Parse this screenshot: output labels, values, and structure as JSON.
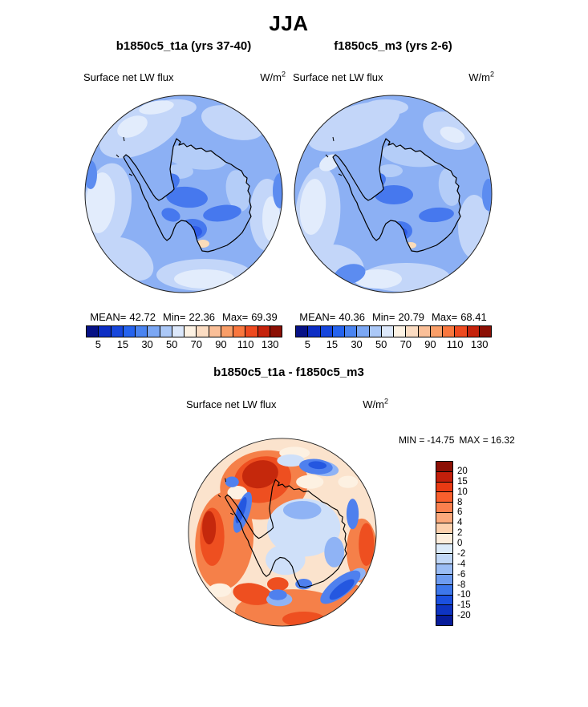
{
  "page": {
    "title": "JJA"
  },
  "labels": {
    "mean": "MEAN=",
    "min": "Min=",
    "max": "Max=",
    "diff_min": "MIN =",
    "diff_max": "MAX ="
  },
  "panels": {
    "left": {
      "header": "b1850c5_t1a (yrs 37-40)",
      "variable": "Surface net LW flux",
      "units_base": "W/m",
      "units_exp": "2",
      "mean": "42.72",
      "min": "22.36",
      "max": "69.39"
    },
    "right": {
      "header": "f1850c5_m3 (yrs 2-6)",
      "variable": "Surface net LW flux",
      "units_base": "W/m",
      "units_exp": "2",
      "mean": "40.36",
      "min": "20.79",
      "max": "68.41"
    }
  },
  "top_colorbar": {
    "tick_labels": [
      "5",
      "15",
      "30",
      "50",
      "70",
      "90",
      "110",
      "130"
    ],
    "colors": [
      "#071286",
      "#0d2ec4",
      "#1646dc",
      "#2563ee",
      "#4a84f1",
      "#7ba7f4",
      "#abc8f7",
      "#dce8fb",
      "#fdf2e3",
      "#fbdcc2",
      "#fabf98",
      "#f99e68",
      "#f9773e",
      "#ee4a1f",
      "#c5230c",
      "#8c1005"
    ]
  },
  "diff": {
    "header": "b1850c5_t1a - f1850c5_m3",
    "variable": "Surface net LW flux",
    "units_base": "W/m",
    "units_exp": "2",
    "min": "-14.75",
    "max": "16.32",
    "colorbar": {
      "tick_labels": [
        "20",
        "15",
        "10",
        "8",
        "6",
        "4",
        "2",
        "0",
        "-2",
        "-4",
        "-6",
        "-8",
        "-10",
        "-15",
        "-20"
      ],
      "colors": [
        "#8c1005",
        "#c31f0b",
        "#e93a13",
        "#f95f2d",
        "#fa804e",
        "#fba97c",
        "#fcd0ad",
        "#fdeedd",
        "#dcebfa",
        "#c1d8f8",
        "#9bbdf5",
        "#6e9cf1",
        "#3d77ec",
        "#1b50e0",
        "#0e34c2",
        "#071c9a"
      ]
    }
  },
  "chart_data": [
    {
      "type": "heatmap",
      "subtype": "south-polar-stereographic-map",
      "title": "b1850c5_t1a (yrs 37-40)",
      "season": "JJA",
      "variable": "Surface net LW flux",
      "units": "W/m^2",
      "stats": {
        "mean": 42.72,
        "min": 22.36,
        "max": 69.39
      },
      "contour_tick_levels": [
        5,
        15,
        30,
        50,
        70,
        90,
        110,
        130
      ],
      "palette": "blue-white-red, 16 bins",
      "legend_position": "below"
    },
    {
      "type": "heatmap",
      "subtype": "south-polar-stereographic-map",
      "title": "f1850c5_m3 (yrs 2-6)",
      "season": "JJA",
      "variable": "Surface net LW flux",
      "units": "W/m^2",
      "stats": {
        "mean": 40.36,
        "min": 20.79,
        "max": 68.41
      },
      "contour_tick_levels": [
        5,
        15,
        30,
        50,
        70,
        90,
        110,
        130
      ],
      "palette": "blue-white-red, 16 bins",
      "legend_position": "below"
    },
    {
      "type": "heatmap",
      "subtype": "south-polar-stereographic-map difference",
      "title": "b1850c5_t1a - f1850c5_m3",
      "season": "JJA",
      "variable": "Surface net LW flux",
      "units": "W/m^2",
      "stats": {
        "min": -14.75,
        "max": 16.32
      },
      "contour_tick_levels": [
        20,
        15,
        10,
        8,
        6,
        4,
        2,
        0,
        -2,
        -4,
        -6,
        -8,
        -10,
        -15,
        -20
      ],
      "palette": "red-white-blue (top warm), 16 bins",
      "legend_position": "right"
    }
  ]
}
